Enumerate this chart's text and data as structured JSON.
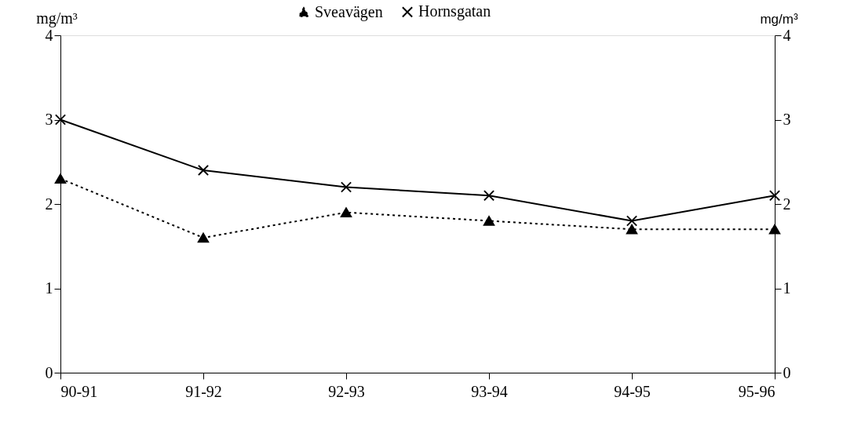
{
  "chart_data": {
    "type": "line",
    "categories": [
      "90-91",
      "91-92",
      "92-93",
      "93-94",
      "94-95",
      "95-96"
    ],
    "series": [
      {
        "name": "Sveavägen",
        "color": "#000000",
        "marker": "triangle",
        "line_style": "dotted",
        "values": [
          2.3,
          1.6,
          1.9,
          1.8,
          1.7,
          1.7
        ]
      },
      {
        "name": "Hornsgatan",
        "color": "#000000",
        "marker": "cross",
        "line_style": "solid",
        "values": [
          3.0,
          2.4,
          2.2,
          2.1,
          1.8,
          2.1
        ]
      }
    ],
    "ylabel": "mg/m³",
    "y2label": "mg/m³",
    "ylim": [
      0,
      4
    ],
    "yticks": [
      0,
      1,
      2,
      3,
      4
    ],
    "y2lim": [
      0,
      4
    ],
    "y2ticks": [
      0,
      1,
      2,
      3,
      4
    ],
    "grid": false,
    "legend": "top"
  }
}
